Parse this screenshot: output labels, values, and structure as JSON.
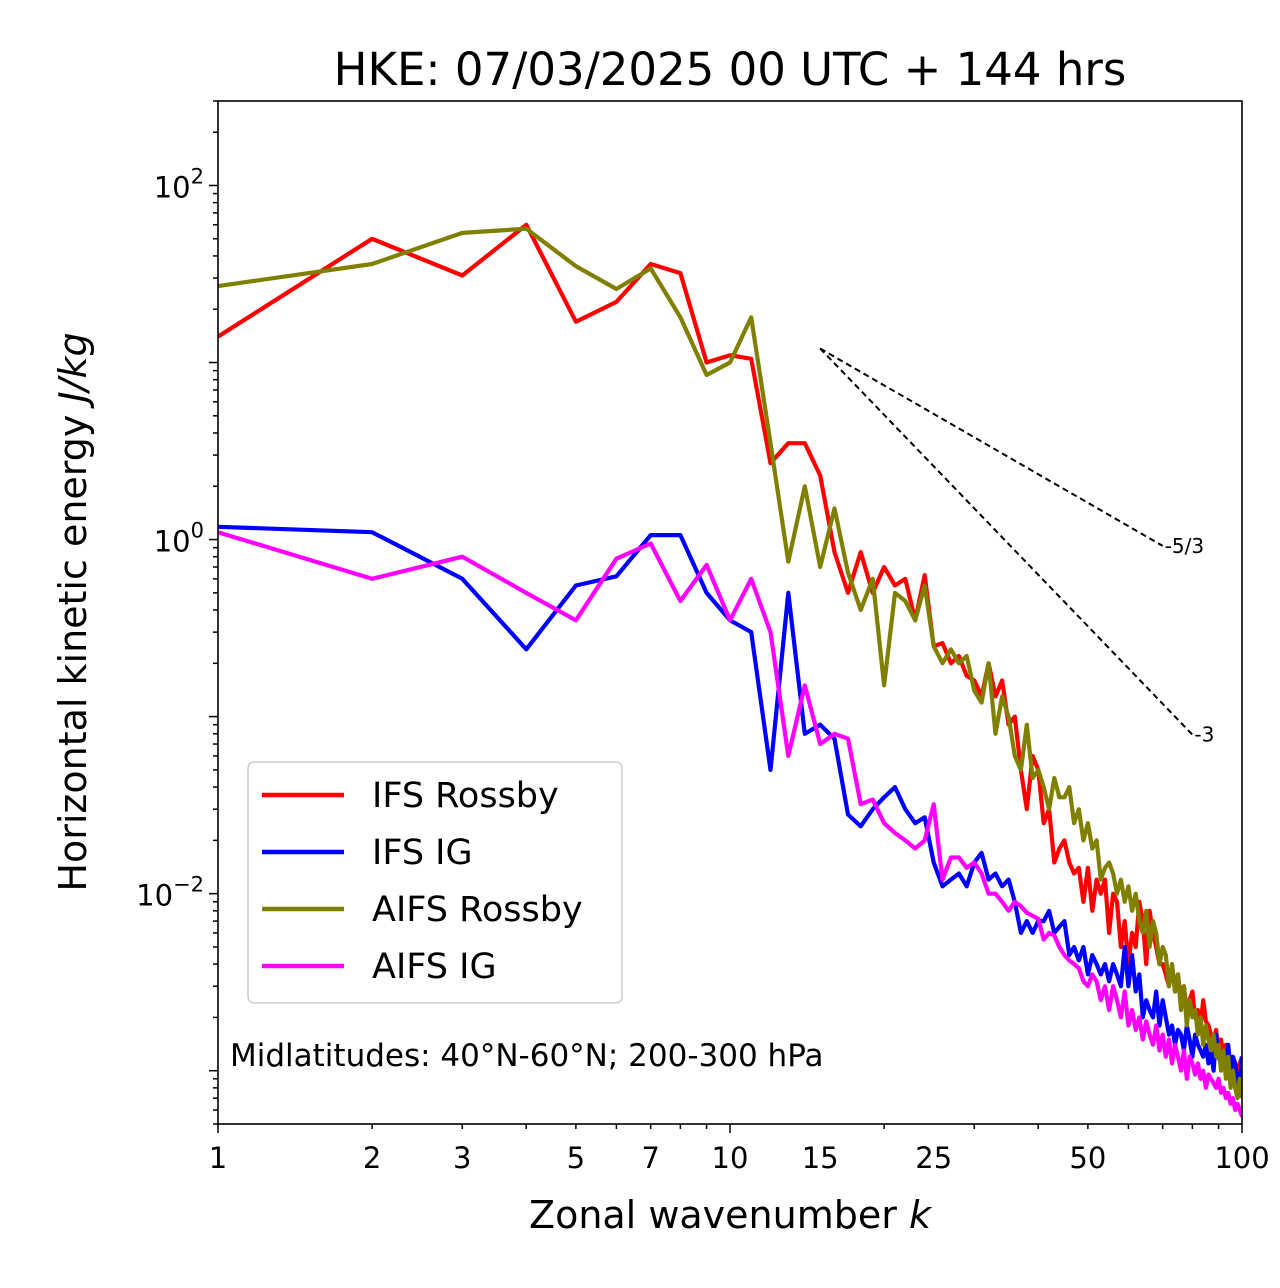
{
  "chart_data": {
    "type": "line",
    "title": "HKE: 07/03/2025 00 UTC + 144 hrs",
    "xlabel_text": "Zonal wavenumber ",
    "xlabel_math": "k",
    "ylabel_text": "Horizontal kinetic energy ",
    "ylabel_math": "J/kg",
    "x_scale": "log",
    "y_scale": "log",
    "xlim": [
      1,
      100
    ],
    "ylim": [
      0.0005,
      300
    ],
    "x_ticks": [
      {
        "value": 1,
        "label": "1"
      },
      {
        "value": 2,
        "label": "2"
      },
      {
        "value": 3,
        "label": "3"
      },
      {
        "value": 5,
        "label": "5"
      },
      {
        "value": 7,
        "label": "7"
      },
      {
        "value": 10,
        "label": "10"
      },
      {
        "value": 15,
        "label": "15"
      },
      {
        "value": 25,
        "label": "25"
      },
      {
        "value": 50,
        "label": "50"
      },
      {
        "value": 100,
        "label": "100"
      }
    ],
    "y_ticks": [
      {
        "value": 0.01,
        "base": "10",
        "exp": "−2"
      },
      {
        "value": 1,
        "base": "10",
        "exp": "0"
      },
      {
        "value": 100,
        "base": "10",
        "exp": "2"
      }
    ],
    "grid": false,
    "legend_position": "lower-left",
    "annotation": "Midlatitudes: 40°N-60°N; 200-300 hPa",
    "reference_lines": [
      {
        "label": "-5/3",
        "slope": -1.6667,
        "x_start": 15,
        "x_end": 70,
        "y_start": 12
      },
      {
        "label": "-3",
        "slope": -3,
        "x_start": 15,
        "x_end": 80,
        "y_start": 12
      }
    ],
    "x": [
      1,
      2,
      3,
      4,
      5,
      6,
      7,
      8,
      9,
      10,
      11,
      12,
      13,
      14,
      15,
      16,
      17,
      18,
      19,
      20,
      21,
      22,
      23,
      24,
      25,
      26,
      27,
      28,
      29,
      30,
      31,
      32,
      33,
      34,
      35,
      36,
      37,
      38,
      39,
      40,
      41,
      42,
      43,
      44,
      45,
      46,
      47,
      48,
      49,
      50,
      51,
      52,
      53,
      54,
      55,
      56,
      57,
      58,
      59,
      60,
      61,
      62,
      63,
      64,
      65,
      66,
      67,
      68,
      69,
      70,
      71,
      72,
      73,
      74,
      75,
      76,
      77,
      78,
      79,
      80,
      81,
      82,
      83,
      84,
      85,
      86,
      87,
      88,
      89,
      90,
      91,
      92,
      93,
      94,
      95,
      96,
      97,
      98,
      99,
      100
    ],
    "series": [
      {
        "name": "IFS Rossby",
        "color": "#ff0000",
        "values": [
          14,
          50,
          31,
          60,
          17,
          22,
          36,
          32,
          10,
          11,
          10.5,
          2.7,
          3.5,
          3.5,
          2.3,
          0.85,
          0.5,
          0.85,
          0.5,
          0.7,
          0.55,
          0.6,
          0.35,
          0.63,
          0.25,
          0.26,
          0.2,
          0.22,
          0.17,
          0.16,
          0.13,
          0.2,
          0.13,
          0.16,
          0.09,
          0.1,
          0.05,
          0.03,
          0.06,
          0.05,
          0.025,
          0.03,
          0.015,
          0.018,
          0.02,
          0.015,
          0.013,
          0.014,
          0.009,
          0.014,
          0.008,
          0.012,
          0.01,
          0.012,
          0.006,
          0.01,
          0.009,
          0.005,
          0.007,
          0.004,
          0.006,
          0.005,
          0.009,
          0.007,
          0.004,
          0.008,
          0.006,
          0.005,
          0.004,
          0.004,
          0.0035,
          0.003,
          0.004,
          0.0028,
          0.0035,
          0.0025,
          0.003,
          0.0022,
          0.0025,
          0.0028,
          0.002,
          0.0022,
          0.0018,
          0.0025,
          0.0019,
          0.0018,
          0.0016,
          0.0015,
          0.0017,
          0.0013,
          0.0015,
          0.0012,
          0.0014,
          0.0011,
          0.0012,
          0.001,
          0.0011,
          0.0009,
          0.0011,
          0.0012
        ]
      },
      {
        "name": "IFS IG",
        "color": "#0000ff",
        "values": [
          1.18,
          1.1,
          0.6,
          0.24,
          0.55,
          0.62,
          1.06,
          1.06,
          0.5,
          0.35,
          0.3,
          0.05,
          0.5,
          0.08,
          0.09,
          0.075,
          0.028,
          0.024,
          0.03,
          0.035,
          0.04,
          0.03,
          0.025,
          0.027,
          0.015,
          0.011,
          0.012,
          0.013,
          0.011,
          0.015,
          0.017,
          0.012,
          0.013,
          0.011,
          0.012,
          0.009,
          0.006,
          0.007,
          0.006,
          0.007,
          0.007,
          0.008,
          0.006,
          0.0065,
          0.007,
          0.0045,
          0.005,
          0.0042,
          0.005,
          0.0035,
          0.0045,
          0.004,
          0.0035,
          0.004,
          0.0032,
          0.004,
          0.0035,
          0.003,
          0.005,
          0.003,
          0.0045,
          0.0028,
          0.0035,
          0.002,
          0.0025,
          0.0022,
          0.002,
          0.0028,
          0.0018,
          0.0025,
          0.002,
          0.0016,
          0.0018,
          0.0014,
          0.0017,
          0.0016,
          0.0013,
          0.0018,
          0.0015,
          0.0012,
          0.0016,
          0.0014,
          0.0013,
          0.0012,
          0.0014,
          0.0011,
          0.0013,
          0.001,
          0.0016,
          0.0012,
          0.0011,
          0.0013,
          0.0011,
          0.0014,
          0.001,
          0.0012,
          0.0011,
          0.0009,
          0.0008,
          0.0012
        ]
      },
      {
        "name": "AIFS Rossby",
        "color": "#808000",
        "values": [
          27,
          36,
          54,
          57,
          35,
          26,
          34,
          18,
          8.5,
          10,
          18,
          3.5,
          0.75,
          2,
          0.7,
          1.5,
          0.65,
          0.4,
          0.6,
          0.15,
          0.5,
          0.45,
          0.35,
          0.55,
          0.25,
          0.2,
          0.24,
          0.2,
          0.22,
          0.14,
          0.12,
          0.2,
          0.08,
          0.13,
          0.1,
          0.06,
          0.05,
          0.09,
          0.045,
          0.05,
          0.04,
          0.03,
          0.045,
          0.035,
          0.035,
          0.04,
          0.025,
          0.03,
          0.02,
          0.025,
          0.018,
          0.02,
          0.012,
          0.014,
          0.015,
          0.013,
          0.01,
          0.012,
          0.009,
          0.011,
          0.008,
          0.01,
          0.007,
          0.006,
          0.008,
          0.005,
          0.007,
          0.006,
          0.004,
          0.005,
          0.0045,
          0.003,
          0.004,
          0.0028,
          0.0035,
          0.0022,
          0.003,
          0.0018,
          0.0025,
          0.002,
          0.0022,
          0.0016,
          0.002,
          0.0014,
          0.0018,
          0.0015,
          0.0013,
          0.0016,
          0.0012,
          0.0014,
          0.001,
          0.0013,
          0.0009,
          0.0012,
          0.0008,
          0.001,
          0.0008,
          0.0007,
          0.0009,
          0.0007
        ]
      },
      {
        "name": "AIFS IG",
        "color": "#ff00ff",
        "values": [
          1.1,
          0.6,
          0.8,
          0.5,
          0.35,
          0.78,
          0.95,
          0.45,
          0.72,
          0.35,
          0.6,
          0.3,
          0.06,
          0.15,
          0.07,
          0.08,
          0.075,
          0.032,
          0.034,
          0.025,
          0.022,
          0.02,
          0.018,
          0.02,
          0.032,
          0.012,
          0.016,
          0.016,
          0.014,
          0.015,
          0.013,
          0.01,
          0.01,
          0.009,
          0.008,
          0.009,
          0.0085,
          0.0078,
          0.0075,
          0.0072,
          0.0055,
          0.006,
          0.0058,
          0.005,
          0.0045,
          0.0042,
          0.004,
          0.0038,
          0.0032,
          0.003,
          0.0035,
          0.0032,
          0.0025,
          0.003,
          0.0022,
          0.003,
          0.0025,
          0.002,
          0.0028,
          0.0018,
          0.0022,
          0.0017,
          0.002,
          0.0015,
          0.0019,
          0.0016,
          0.0014,
          0.0018,
          0.0013,
          0.0016,
          0.0012,
          0.0015,
          0.0011,
          0.0014,
          0.0012,
          0.001,
          0.0013,
          0.0009,
          0.0012,
          0.0011,
          0.00095,
          0.0011,
          0.0009,
          0.001,
          0.0008,
          0.00095,
          0.0009,
          0.00085,
          0.0008,
          0.0009,
          0.00075,
          0.0008,
          0.0007,
          0.00075,
          0.00065,
          0.0007,
          0.0006,
          0.00065,
          0.0006,
          0.00055
        ]
      }
    ]
  }
}
